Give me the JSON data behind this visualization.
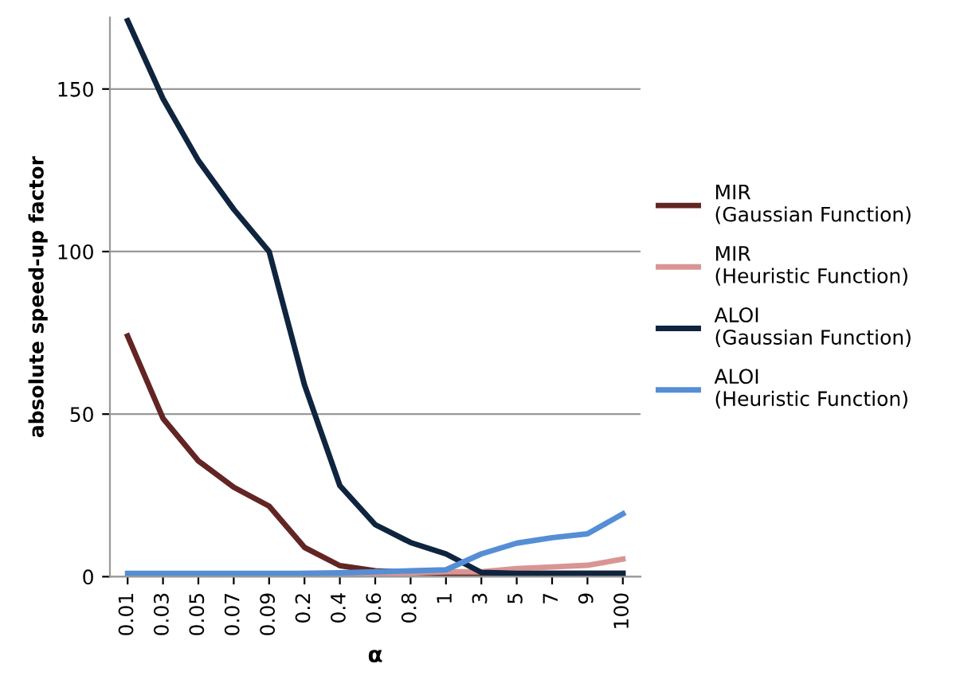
{
  "chart_data": {
    "type": "line",
    "xlabel": "α",
    "ylabel": "absolute speed-up factor",
    "categories": [
      "0.01",
      "0.03",
      "0.05",
      "0.07",
      "0.09",
      "0.2",
      "0.4",
      "0.6",
      "0.8",
      "1",
      "3",
      "5",
      "7",
      "9",
      "100"
    ],
    "series": [
      {
        "name": "MIR\n(Gaussian Function)",
        "color": "#632523",
        "values": [
          74,
          48.7,
          35.6,
          27.5,
          21.7,
          9,
          3.4,
          1.8,
          1.3,
          1,
          1,
          1,
          1,
          1,
          1
        ]
      },
      {
        "name": "MIR\n(Heuristic Function)",
        "color": "#d99594",
        "values": [
          null,
          null,
          null,
          null,
          null,
          1,
          1,
          1,
          1.2,
          1.5,
          1.5,
          2.5,
          3,
          3.5,
          5.4
        ]
      },
      {
        "name": "ALOI\n(Gaussian Function)",
        "color": "#0f243e",
        "values": [
          171,
          147,
          128,
          113,
          100,
          59,
          28,
          16,
          10.5,
          7,
          1.3,
          1,
          1,
          1,
          1
        ]
      },
      {
        "name": "ALOI\n(Heuristic Function)",
        "color": "#558ed5",
        "values": [
          1,
          1,
          1,
          1,
          1,
          1,
          1.2,
          1.5,
          1.8,
          2.1,
          7,
          10.3,
          12,
          13.2,
          19.3
        ]
      }
    ],
    "ylim": [
      0,
      172
    ],
    "yticks": [
      0,
      50,
      100,
      150
    ],
    "grid": "y",
    "legend": "right",
    "marker": "none",
    "line_style": "solid"
  }
}
